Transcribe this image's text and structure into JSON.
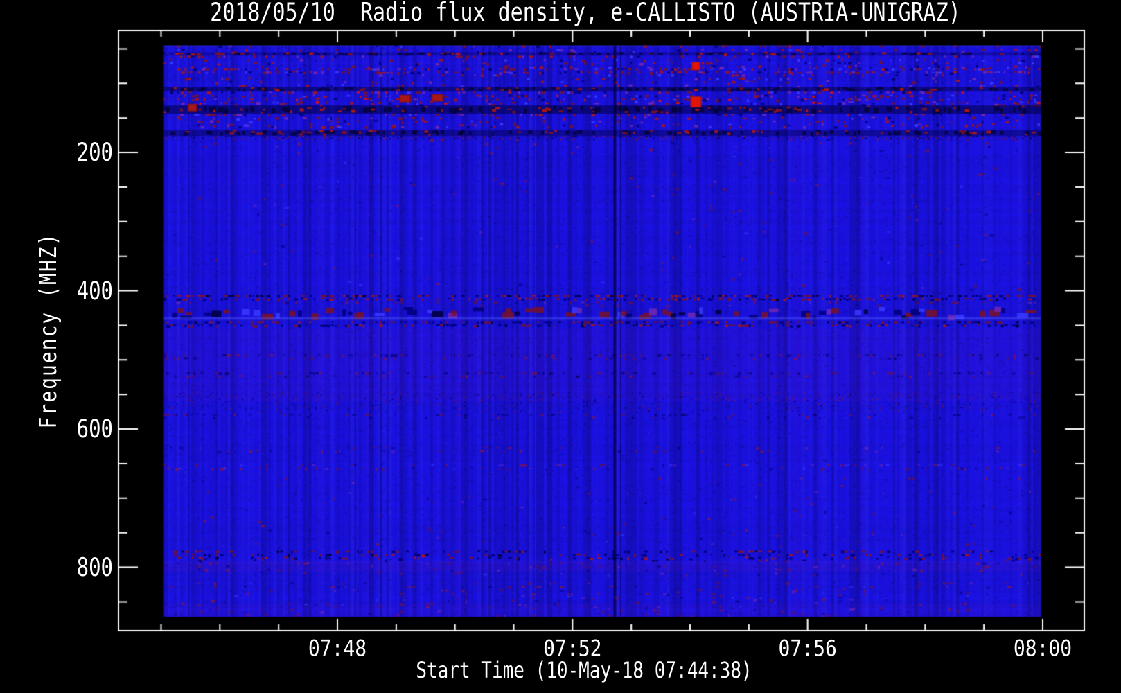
{
  "figure": {
    "background": "#000000",
    "frame_color": "#ffffff",
    "text_color": "#ffffff"
  },
  "chart_data": {
    "type": "heatmap",
    "title": "2018/05/10  Radio flux density, e-CALLISTO (AUSTRIA-UNIGRAZ)",
    "xlabel": "Start Time (10-May-18 07:44:38)",
    "ylabel": "Frequency (MHZ)",
    "meta": {
      "date": "2018/05/10",
      "quantity": "Radio flux density",
      "instrument": "e-CALLISTO",
      "station": "AUSTRIA-UNIGRAZ",
      "start_time": "10-May-18 07:44:38"
    },
    "x_axis": {
      "major_ticks": [
        {
          "sec": 202,
          "label": "07:48"
        },
        {
          "sec": 442,
          "label": "07:52"
        },
        {
          "sec": 682,
          "label": "07:56"
        },
        {
          "sec": 922,
          "label": "08:00"
        }
      ],
      "minor_ticks_sec": [
        22,
        82,
        142,
        262,
        322,
        382,
        502,
        562,
        622,
        742,
        802,
        862
      ],
      "axis_range_sec": [
        -22,
        963
      ],
      "data_range_sec": [
        24,
        920
      ],
      "seconds_are_offsets_from": "07:44:38"
    },
    "y_axis": {
      "major_ticks": [
        200,
        400,
        600,
        800
      ],
      "minor_ticks": [
        50,
        100,
        150,
        250,
        300,
        350,
        450,
        500,
        550,
        650,
        700,
        750,
        850
      ],
      "axis_range_mhz": [
        23,
        893
      ],
      "data_range_mhz": [
        45,
        872
      ],
      "direction": "increasing-downward"
    },
    "colormap": {
      "base": "#1b12e4",
      "base_light": "#3a3aff",
      "dark": "#000078",
      "very_dark": "#000038",
      "red_dark": "#7a1226",
      "red_mid": "#a81616",
      "red_bright": "#e41404",
      "purple": "#7428b0",
      "light_row": "#5a64ff",
      "tint_rgb": "130,30,160"
    },
    "features": {
      "noise_seed": 1337,
      "bands": [
        {
          "f0": 43,
          "f1": 47,
          "type": "light_row",
          "alpha": 0.25
        },
        {
          "f0": 45,
          "f1": 57,
          "type": "speckle",
          "density": 0.16
        },
        {
          "f0": 55,
          "f1": 60,
          "type": "dark_row",
          "alpha": 0.3,
          "speckle": 0.1
        },
        {
          "f0": 60,
          "f1": 78,
          "type": "speckle",
          "density": 0.28
        },
        {
          "f0": 78,
          "f1": 87,
          "type": "speckle",
          "density": 0.42
        },
        {
          "f0": 87,
          "f1": 105,
          "type": "speckle",
          "density": 0.22
        },
        {
          "f0": 105,
          "f1": 112,
          "type": "dark_row",
          "alpha": 0.45,
          "speckle": 0.15
        },
        {
          "f0": 112,
          "f1": 132,
          "type": "speckle",
          "density": 0.5,
          "bright": true
        },
        {
          "f0": 132,
          "f1": 144,
          "type": "dark_row",
          "alpha": 0.55,
          "speckle": 0.25
        },
        {
          "f0": 144,
          "f1": 162,
          "type": "speckle",
          "density": 0.3
        },
        {
          "f0": 162,
          "f1": 167,
          "type": "speckle",
          "density": 0.12
        },
        {
          "f0": 167,
          "f1": 176,
          "type": "dark_row",
          "alpha": 0.4,
          "speckle": 0.18
        },
        {
          "f0": 176,
          "f1": 181,
          "type": "speckle",
          "density": 0.35,
          "navyMix": true,
          "fine": true
        },
        {
          "f0": 181,
          "f1": 200,
          "type": "speckle",
          "density": 0.06,
          "faint": true
        },
        {
          "f0": 200,
          "f1": 400,
          "type": "speckle",
          "density": 0.02,
          "faint": true
        },
        {
          "f0": 406,
          "f1": 414,
          "type": "speckle",
          "density": 0.55,
          "navyMix": true
        },
        {
          "f0": 416,
          "f1": 422,
          "type": "speckle",
          "density": 0.12,
          "faint": true
        },
        {
          "f0": 423,
          "f1": 443,
          "type": "blocks",
          "density": 0.55
        },
        {
          "f0": 438,
          "f1": 442,
          "type": "light_row",
          "alpha": 0.35
        },
        {
          "f0": 444,
          "f1": 452,
          "type": "speckle",
          "density": 0.45,
          "navyMix": true
        },
        {
          "f0": 455,
          "f1": 560,
          "type": "tint",
          "alpha": 0.08
        },
        {
          "f0": 492,
          "f1": 498,
          "type": "speckle",
          "density": 0.3,
          "navyMix": true,
          "faint": true
        },
        {
          "f0": 518,
          "f1": 524,
          "type": "speckle",
          "density": 0.28,
          "navyMix": true,
          "faint": true
        },
        {
          "f0": 546,
          "f1": 576,
          "type": "speckle",
          "density": 0.3,
          "navyMix": true,
          "faint": true,
          "fine": true
        },
        {
          "f0": 578,
          "f1": 584,
          "type": "speckle",
          "density": 0.2,
          "navyMix": true,
          "faint": true
        },
        {
          "f0": 626,
          "f1": 633,
          "type": "speckle",
          "density": 0.1,
          "faint": true
        },
        {
          "f0": 651,
          "f1": 658,
          "type": "speckle",
          "density": 0.2,
          "faint": true
        },
        {
          "f0": 670,
          "f1": 770,
          "type": "speckle",
          "density": 0.03,
          "faint": true
        },
        {
          "f0": 776,
          "f1": 791,
          "type": "speckle",
          "density": 0.5,
          "navyMix": true
        },
        {
          "f0": 791,
          "f1": 806,
          "type": "tint",
          "alpha": 0.1
        },
        {
          "f0": 793,
          "f1": 812,
          "type": "speckle",
          "density": 0.15,
          "faint": true
        },
        {
          "f0": 822,
          "f1": 872,
          "type": "speckle",
          "density": 0.14,
          "faint": true
        },
        {
          "f0": 852,
          "f1": 872,
          "type": "tint",
          "alpha": 0.07
        }
      ],
      "vertical_lines": [
        {
          "sec": 485,
          "width": 4,
          "alpha": 0.5
        },
        {
          "sec": 491,
          "width": 2,
          "alpha": 0.3
        },
        {
          "sec": 497,
          "width": 2,
          "alpha": 0.15
        }
      ],
      "hot_spots": [
        {
          "sec": 54,
          "mhz": 135,
          "w": 10,
          "h": 9,
          "level": "mid"
        },
        {
          "sec": 271,
          "mhz": 122,
          "w": 13,
          "h": 9,
          "level": "mid"
        },
        {
          "sec": 304,
          "mhz": 121,
          "w": 14,
          "h": 9,
          "level": "mid"
        },
        {
          "sec": 568,
          "mhz": 75,
          "w": 9,
          "h": 10,
          "level": "bright"
        },
        {
          "sec": 568,
          "mhz": 127,
          "w": 12,
          "h": 14,
          "level": "bright"
        }
      ]
    }
  }
}
